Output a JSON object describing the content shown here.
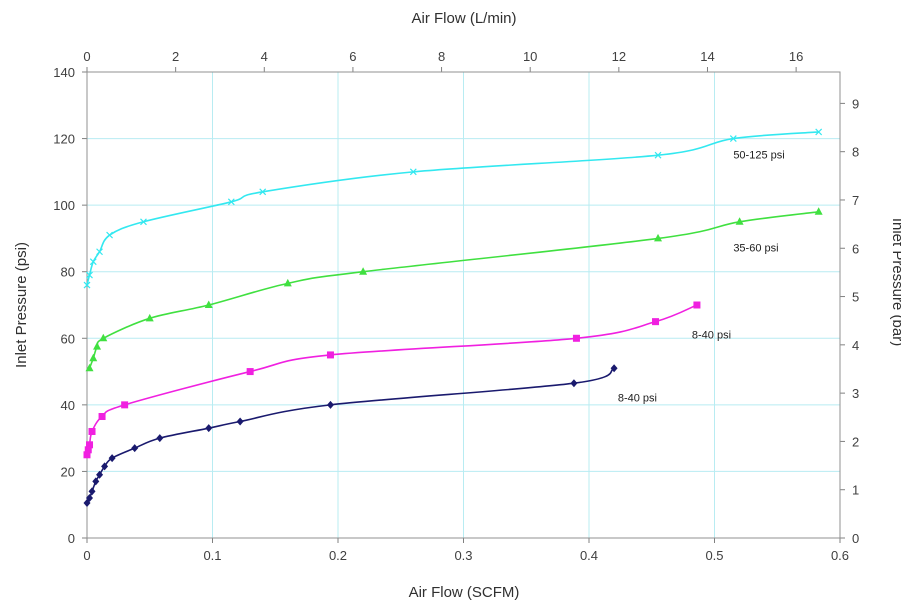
{
  "chart_data": {
    "type": "line",
    "xlabel": "Air Flow (SCFM)",
    "x2label": "Air Flow (L/min)",
    "ylabel": "Inlet Pressure (psi)",
    "y2label": "Inlet Pressure (bar)",
    "xlim": [
      0,
      0.6
    ],
    "x2lim": [
      0,
      16.99
    ],
    "ylim": [
      0,
      140
    ],
    "y2lim": [
      0,
      9.65
    ],
    "grid": true,
    "x_ticks": [
      "0",
      "0.1",
      "0.2",
      "0.3",
      "0.4",
      "0.5",
      "0.6"
    ],
    "x2_ticks": [
      "0",
      "2",
      "4",
      "6",
      "8",
      "10",
      "12",
      "14",
      "16"
    ],
    "y_ticks": [
      "0",
      "20",
      "40",
      "60",
      "80",
      "100",
      "120",
      "140"
    ],
    "y2_ticks": [
      "0",
      "1",
      "2",
      "3",
      "4",
      "5",
      "6",
      "7",
      "8",
      "9"
    ],
    "series": [
      {
        "name": "50-125 psi",
        "color": "#33e8f0",
        "marker": "x",
        "points": [
          [
            0.0,
            76
          ],
          [
            0.002,
            79
          ],
          [
            0.005,
            83
          ],
          [
            0.01,
            86
          ],
          [
            0.018,
            91
          ],
          [
            0.045,
            95
          ],
          [
            0.115,
            101
          ],
          [
            0.14,
            104
          ],
          [
            0.26,
            110
          ],
          [
            0.455,
            115
          ],
          [
            0.515,
            120
          ],
          [
            0.583,
            122
          ]
        ]
      },
      {
        "name": "35-60 psi",
        "color": "#40e040",
        "marker": "triangle",
        "points": [
          [
            0.002,
            51
          ],
          [
            0.005,
            54
          ],
          [
            0.008,
            57.5
          ],
          [
            0.013,
            60
          ],
          [
            0.05,
            66
          ],
          [
            0.097,
            70
          ],
          [
            0.16,
            76.5
          ],
          [
            0.22,
            80
          ],
          [
            0.455,
            90
          ],
          [
            0.52,
            95
          ],
          [
            0.583,
            98
          ]
        ]
      },
      {
        "name": "8-40 psi",
        "color": "#f020e0",
        "marker": "square",
        "points": [
          [
            0.0,
            25
          ],
          [
            0.001,
            26.5
          ],
          [
            0.002,
            28
          ],
          [
            0.004,
            32
          ],
          [
            0.012,
            36.5
          ],
          [
            0.03,
            40
          ],
          [
            0.13,
            50
          ],
          [
            0.194,
            55
          ],
          [
            0.39,
            60
          ],
          [
            0.453,
            65
          ],
          [
            0.486,
            70
          ]
        ]
      },
      {
        "name": "8-40 psi",
        "color": "#1a1a6e",
        "marker": "diamond",
        "points": [
          [
            0.0,
            10.5
          ],
          [
            0.002,
            12
          ],
          [
            0.004,
            14
          ],
          [
            0.007,
            17
          ],
          [
            0.01,
            19
          ],
          [
            0.014,
            21.5
          ],
          [
            0.02,
            24
          ],
          [
            0.038,
            27
          ],
          [
            0.058,
            30
          ],
          [
            0.097,
            33
          ],
          [
            0.122,
            35
          ],
          [
            0.194,
            40
          ],
          [
            0.388,
            46.5
          ],
          [
            0.42,
            51
          ]
        ]
      }
    ],
    "annotations": [
      {
        "text": "50-125 psi",
        "x": 0.515,
        "y": 114
      },
      {
        "text": "35-60 psi",
        "x": 0.515,
        "y": 86
      },
      {
        "text": "8-40 psi",
        "x": 0.482,
        "y": 60
      },
      {
        "text": "8-40 psi",
        "x": 0.423,
        "y": 41
      }
    ]
  }
}
